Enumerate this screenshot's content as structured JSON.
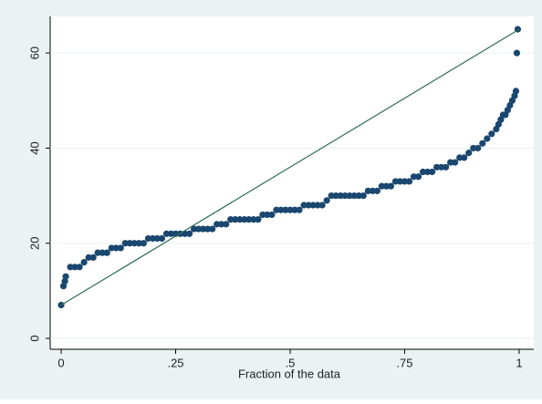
{
  "chart_data": {
    "type": "scatter",
    "x_label": "Fraction of the data",
    "xlim": [
      -0.024,
      1.032
    ],
    "ylim": [
      -2.3,
      67.7
    ],
    "xticks": [
      0,
      {
        "value": 0.25,
        "label": ".25"
      },
      {
        "value": 0.5,
        "label": ".5"
      },
      {
        "value": 0.75,
        "label": ".75"
      },
      1
    ],
    "yticks": [
      0,
      20,
      40,
      60
    ],
    "grid": true,
    "series": [
      {
        "color": "#1a476f",
        "x": [
          0,
          0.005,
          0.008,
          0.01,
          0.02,
          0.03,
          0.04,
          0.05,
          0.06,
          0.07,
          0.08,
          0.09,
          0.1,
          0.11,
          0.12,
          0.13,
          0.14,
          0.15,
          0.16,
          0.17,
          0.18,
          0.19,
          0.2,
          0.21,
          0.22,
          0.23,
          0.24,
          0.25,
          0.26,
          0.27,
          0.28,
          0.29,
          0.3,
          0.31,
          0.32,
          0.33,
          0.34,
          0.35,
          0.36,
          0.37,
          0.38,
          0.39,
          0.4,
          0.41,
          0.42,
          0.43,
          0.44,
          0.45,
          0.46,
          0.47,
          0.48,
          0.49,
          0.5,
          0.51,
          0.52,
          0.53,
          0.54,
          0.55,
          0.56,
          0.57,
          0.58,
          0.59,
          0.6,
          0.61,
          0.62,
          0.63,
          0.64,
          0.65,
          0.66,
          0.67,
          0.68,
          0.69,
          0.7,
          0.71,
          0.72,
          0.73,
          0.74,
          0.75,
          0.76,
          0.77,
          0.78,
          0.79,
          0.8,
          0.81,
          0.82,
          0.83,
          0.84,
          0.85,
          0.86,
          0.87,
          0.88,
          0.89,
          0.9,
          0.91,
          0.92,
          0.93,
          0.94,
          0.95,
          0.955,
          0.96,
          0.965,
          0.97,
          0.975,
          0.98,
          0.985,
          0.99,
          0.993,
          0.995,
          0.997
        ],
        "values": [
          7,
          11,
          12,
          13,
          15,
          15,
          15,
          16,
          17,
          17,
          18,
          18,
          18,
          19,
          19,
          19,
          20,
          20,
          20,
          20,
          20,
          21,
          21,
          21,
          21,
          22,
          22,
          22,
          22,
          22,
          22,
          23,
          23,
          23,
          23,
          23,
          24,
          24,
          24,
          25,
          25,
          25,
          25,
          25,
          25,
          25,
          26,
          26,
          26,
          27,
          27,
          27,
          27,
          27,
          27,
          28,
          28,
          28,
          28,
          28,
          29,
          30,
          30,
          30,
          30,
          30,
          30,
          30,
          30,
          31,
          31,
          31,
          32,
          32,
          32,
          33,
          33,
          33,
          33,
          34,
          34,
          35,
          35,
          35,
          36,
          36,
          36,
          37,
          37,
          38,
          38,
          39,
          40,
          40,
          41,
          42,
          43,
          44,
          45,
          46,
          47,
          47,
          48,
          49,
          50,
          51,
          52,
          60,
          65
        ]
      }
    ],
    "reference_line": {
      "color": "#2e6e4e",
      "x": [
        0,
        1
      ],
      "values": [
        7,
        65
      ]
    }
  }
}
